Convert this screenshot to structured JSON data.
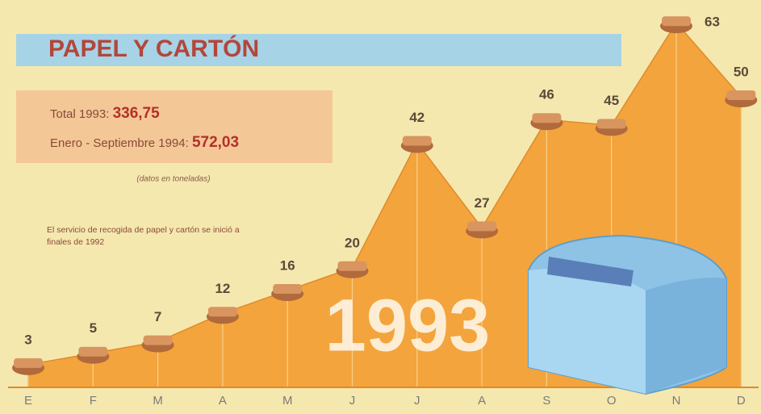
{
  "chart_data": {
    "type": "area",
    "title": "PAPEL Y CARTÓN",
    "total_label": "Total 1993:",
    "total_value": "336,75",
    "partial_label": "Enero - Septiembre 1994:",
    "partial_value": "572,03",
    "units_note": "(datos en toneladas)",
    "note": "El servicio de recogida de papel y cartón se inició a finales de 1992",
    "year_label": "1993",
    "categories": [
      "E",
      "F",
      "M",
      "A",
      "M",
      "J",
      "J",
      "A",
      "S",
      "O",
      "N",
      "D"
    ],
    "values": [
      3,
      5,
      7,
      12,
      16,
      20,
      42,
      27,
      46,
      45,
      63,
      50
    ],
    "color": "#f4a43c",
    "ylim": [
      0,
      67
    ]
  }
}
